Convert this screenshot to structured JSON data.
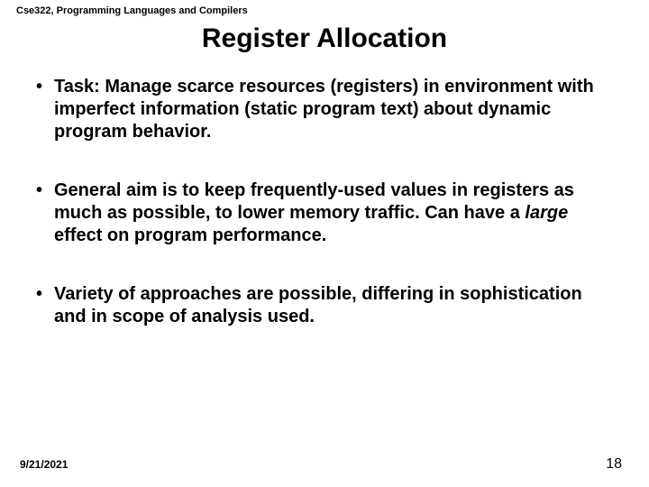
{
  "header": "Cse322, Programming Languages and Compilers",
  "title": "Register Allocation",
  "bullets": [
    {
      "pre": "Task: Manage scarce resources (registers) in environment with imperfect information (static program text) about dynamic program behavior.",
      "italic": "",
      "post": ""
    },
    {
      "pre": "General aim is to keep frequently-used values in registers as much as possible, to lower memory traffic.  Can have a ",
      "italic": "large",
      "post": " effect on program performance."
    },
    {
      "pre": "Variety of approaches are possible, differing in sophistication and in scope of analysis used.",
      "italic": "",
      "post": ""
    }
  ],
  "footer": {
    "date": "9/21/2021",
    "page": "18"
  },
  "colors": {
    "background": "#ffffff",
    "text": "#000000"
  },
  "fonts": {
    "header_size": 11,
    "title_size": 30,
    "body_size": 20,
    "footer_date_size": 12,
    "footer_page_size": 16
  }
}
